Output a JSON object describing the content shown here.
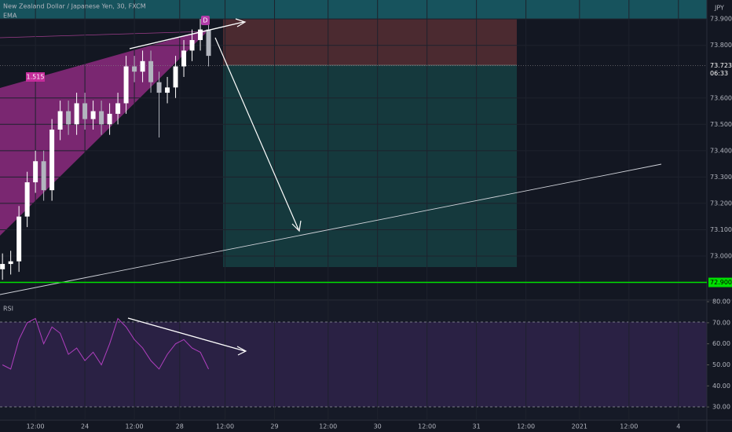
{
  "chart_data": [
    {
      "type": "candlestick",
      "title": "New Zealand Dollar / Japanese Yen, 30, FXCM",
      "indicator": "EMA",
      "currency": "JPY",
      "pattern_label": "1.515",
      "point_label": "D",
      "last_price": {
        "value": 73.723,
        "label": "73.723"
      },
      "countdown": "06:33",
      "level": {
        "value": 72.9,
        "label": "72.900",
        "color": "#00e000"
      },
      "up_color": "#ffffff",
      "down_color": "#b2b5be",
      "x": [
        4,
        6,
        8,
        10,
        12,
        14,
        16,
        18,
        20,
        22,
        24,
        26,
        28,
        30,
        32,
        34,
        36,
        38,
        40,
        42,
        44,
        46,
        48,
        50,
        52,
        54
      ],
      "open": [
        72.95,
        72.97,
        72.98,
        73.15,
        73.28,
        73.36,
        73.25,
        73.48,
        73.55,
        73.5,
        73.58,
        73.52,
        73.55,
        73.5,
        73.54,
        73.58,
        73.72,
        73.7,
        73.74,
        73.66,
        73.62,
        73.64,
        73.72,
        73.78,
        73.82,
        73.86
      ],
      "high": [
        73.01,
        73.02,
        73.19,
        73.32,
        73.4,
        73.4,
        73.52,
        73.59,
        73.59,
        73.62,
        73.62,
        73.59,
        73.59,
        73.58,
        73.62,
        73.76,
        73.76,
        73.78,
        73.78,
        73.7,
        73.68,
        73.76,
        73.82,
        73.86,
        73.9,
        73.9
      ],
      "low": [
        72.91,
        72.93,
        72.94,
        73.11,
        73.24,
        73.21,
        73.21,
        73.44,
        73.46,
        73.46,
        73.48,
        73.48,
        73.46,
        73.46,
        73.5,
        73.54,
        73.66,
        73.66,
        73.62,
        73.45,
        73.58,
        73.6,
        73.68,
        73.74,
        73.78,
        73.72
      ],
      "close": [
        72.97,
        72.98,
        73.15,
        73.28,
        73.36,
        73.25,
        73.48,
        73.55,
        73.5,
        73.58,
        73.52,
        73.55,
        73.5,
        73.54,
        73.58,
        73.72,
        73.7,
        73.74,
        73.66,
        73.62,
        73.64,
        73.72,
        73.78,
        73.82,
        73.86,
        73.76
      ],
      "xlim": [
        3.4,
        174.9
      ],
      "xticks": [
        {
          "value": 12,
          "label": "12:00"
        },
        {
          "value": 24,
          "label": "24"
        },
        {
          "value": 36,
          "label": "12:00"
        },
        {
          "value": 47,
          "label": "28"
        },
        {
          "value": 58,
          "label": "12:00"
        },
        {
          "value": 70,
          "label": "29"
        },
        {
          "value": 83,
          "label": "12:00"
        },
        {
          "value": 95,
          "label": "30"
        },
        {
          "value": 107,
          "label": "12:00"
        },
        {
          "value": 119,
          "label": "31"
        },
        {
          "value": 131,
          "label": "12:00"
        },
        {
          "value": 144,
          "label": "2021"
        },
        {
          "value": 156,
          "label": "12:00"
        },
        {
          "value": 168,
          "label": "4"
        }
      ],
      "ylim": [
        72.839,
        73.972
      ],
      "yticks": [
        {
          "value": 73.0,
          "label": "73.000"
        },
        {
          "value": 73.1,
          "label": "73.100"
        },
        {
          "value": 73.2,
          "label": "73.200"
        },
        {
          "value": 73.3,
          "label": "73.300"
        },
        {
          "value": 73.4,
          "label": "73.400"
        },
        {
          "value": 73.5,
          "label": "73.500"
        },
        {
          "value": 73.6,
          "label": "73.600"
        },
        {
          "value": 73.8,
          "label": "73.800"
        },
        {
          "value": 73.9,
          "label": "73.900"
        }
      ]
    },
    {
      "type": "line",
      "title": "RSI",
      "color": "#b03fbf",
      "x": [
        4,
        6,
        8,
        10,
        12,
        14,
        16,
        18,
        20,
        22,
        24,
        26,
        28,
        30,
        32,
        34,
        36,
        38,
        40,
        42,
        44,
        46,
        48,
        50,
        52,
        54
      ],
      "values": [
        50,
        48,
        62,
        70,
        72,
        60,
        68,
        65,
        55,
        58,
        52,
        56,
        50,
        60,
        72,
        68,
        62,
        58,
        52,
        48,
        55,
        60,
        62,
        58,
        56,
        48
      ],
      "xlim": [
        3.4,
        174.9
      ],
      "ylim": [
        23.7,
        80.4
      ],
      "yticks": [
        {
          "value": 30,
          "label": "30.00"
        },
        {
          "value": 40,
          "label": "40.00"
        },
        {
          "value": 50,
          "label": "50.00"
        },
        {
          "value": 60,
          "label": "60.00"
        },
        {
          "value": 70,
          "label": "70.00"
        },
        {
          "value": 80,
          "label": "80.00"
        }
      ]
    }
  ]
}
